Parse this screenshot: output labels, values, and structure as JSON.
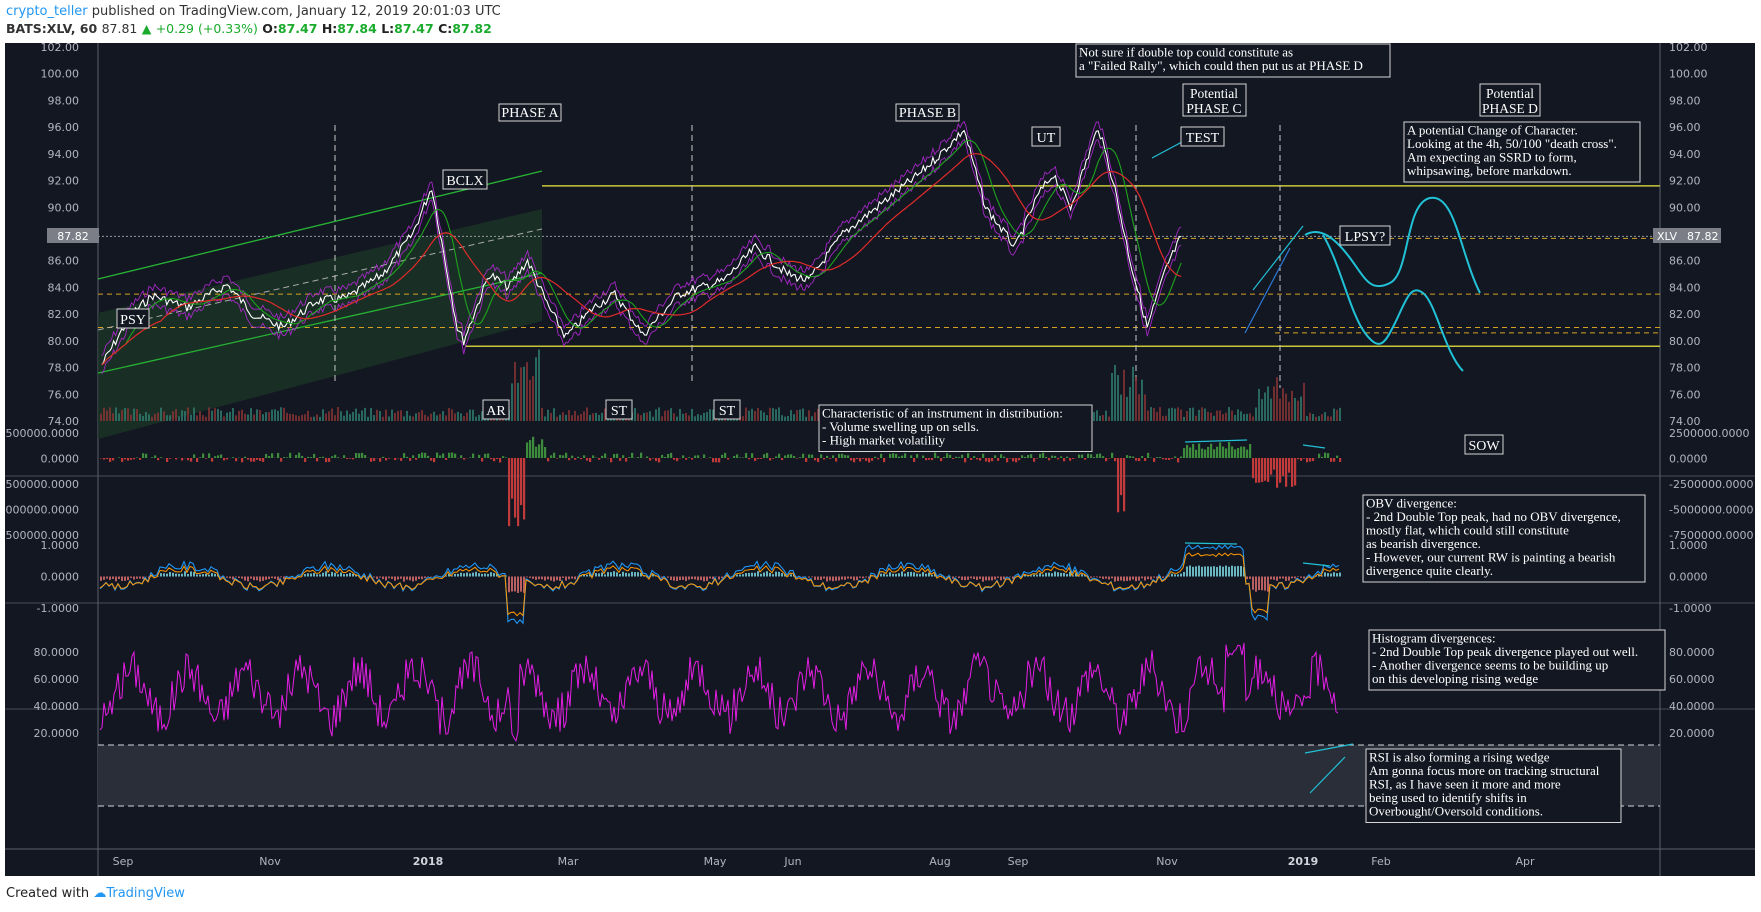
{
  "header": {
    "author": "crypto_teller",
    "published": "published on TradingView.com, January 12, 2019 20:01:03 UTC",
    "symbol": "BATS:XLV, 60",
    "last": "87.81",
    "change": "+0.29 (+0.33%)",
    "open_label": "O:",
    "open": "87.47",
    "high_label": "H:",
    "high": "87.84",
    "low_label": "L:",
    "low": "87.47",
    "close_label": "C:",
    "close": "87.82"
  },
  "footer": {
    "prefix": "Created with",
    "brand": "TradingView"
  },
  "colors": {
    "background": "#131722",
    "price_bar": "#ffffff",
    "ma_fast": "#1fa31f",
    "ma_slow": "#e02b2b",
    "envelope": "#b329d6",
    "yellow_level": "#c9c63a",
    "support_dash": "#d5a123",
    "projection": "#21c1d6",
    "rsi": "#e51ee5",
    "obv_up": "#3c8c3c",
    "obv_down": "#c33a3a"
  },
  "price_scale": {
    "ticks": [
      "102.00",
      "100.00",
      "98.00",
      "96.00",
      "94.00",
      "92.00",
      "90.00",
      "88.00",
      "86.00",
      "84.00",
      "82.00",
      "80.00",
      "78.00",
      "76.00",
      "74.00"
    ],
    "last_tag": "87.82",
    "symbol_tag": "XLV"
  },
  "obv_scale": {
    "ticks": [
      "2500000.0000",
      "0.0000",
      "-2500000.0000",
      "-5000000.0000",
      "-7500000.0000"
    ]
  },
  "hist_scale": {
    "ticks": [
      "1.0000",
      "0.0000",
      "-1.0000"
    ]
  },
  "rsi_scale": {
    "ticks": [
      "80.0000",
      "60.0000",
      "40.0000",
      "20.0000"
    ]
  },
  "time_axis": [
    "Sep",
    "Nov",
    "2018",
    "Mar",
    "May",
    "Jun",
    "Aug",
    "Sep",
    "Nov",
    "2019",
    "Feb",
    "Apr"
  ],
  "labels": {
    "psy": "PSY",
    "bclx": "BCLX",
    "ar": "AR",
    "st1": "ST",
    "st2": "ST",
    "phase_a": "PHASE A",
    "phase_b": "PHASE B",
    "ut": "UT",
    "potential_c_1": "Potential",
    "potential_c_2": "PHASE C",
    "test": "TEST",
    "lpsy": "LPSY?",
    "potential_d_1": "Potential",
    "potential_d_2": "PHASE D",
    "sow": "SOW"
  },
  "notes": {
    "double_top": [
      "Not sure if double top could constitute as",
      "a \"Failed Rally\", which could then put us at PHASE D"
    ],
    "choch": [
      "A potential Change of Character.",
      "Looking at the 4h, 50/100 \"death cross\".",
      "Am expecting an SSRD to form,",
      "whipsawing, before markdown."
    ],
    "distribution": [
      "Characteristic of an instrument in  distribution:",
      "- Volume swelling up on sells.",
      "- High market volatility"
    ],
    "obv": [
      "OBV divergence:",
      "- 2nd Double Top peak, had no OBV divergence,",
      "mostly flat, which could still constitute",
      "as bearish divergence.",
      "- However, our current RW is painting a bearish",
      "divergence quite clearly."
    ],
    "histogram": [
      "Histogram divergences:",
      "- 2nd Double Top peak divergence played out well.",
      "- Another divergence seems to be building up",
      "on this developing rising wedge"
    ],
    "rsi": [
      "RSI is also forming a rising wedge",
      "Am gonna focus more on tracking structural",
      "RSI, as I have seen it more and more",
      "being used to identify shifts in",
      "Overbought/Oversold conditions."
    ]
  },
  "chart_data": [
    {
      "type": "line",
      "title": "BATS:XLV, 60",
      "x_range": [
        "Aug 2017",
        "May 2019"
      ],
      "ylim": [
        74,
        102
      ],
      "series": [
        {
          "name": "XLV",
          "points": [
            [
              "2017-08-22",
              78.2
            ],
            [
              "2017-09-05",
              82.0
            ],
            [
              "2017-09-15",
              83.4
            ],
            [
              "2017-10-01",
              82.5
            ],
            [
              "2017-10-20",
              84.2
            ],
            [
              "2017-11-01",
              82.0
            ],
            [
              "2017-11-15",
              81.0
            ],
            [
              "2017-12-01",
              83.0
            ],
            [
              "2017-12-15",
              83.2
            ],
            [
              "2018-01-01",
              85.0
            ],
            [
              "2018-01-15",
              88.0
            ],
            [
              "2018-01-24",
              91.5
            ],
            [
              "2018-02-05",
              81.0
            ],
            [
              "2018-02-08",
              80.0
            ],
            [
              "2018-02-20",
              85.0
            ],
            [
              "2018-03-01",
              84.0
            ],
            [
              "2018-03-10",
              86.0
            ],
            [
              "2018-03-20",
              82.5
            ],
            [
              "2018-03-28",
              80.3
            ],
            [
              "2018-04-10",
              82.5
            ],
            [
              "2018-04-20",
              83.5
            ],
            [
              "2018-05-01",
              81.0
            ],
            [
              "2018-05-03",
              80.4
            ],
            [
              "2018-05-20",
              83.5
            ],
            [
              "2018-06-10",
              84.5
            ],
            [
              "2018-06-25",
              87.0
            ],
            [
              "2018-07-10",
              85.0
            ],
            [
              "2018-07-20",
              84.5
            ],
            [
              "2018-08-05",
              88.0
            ],
            [
              "2018-08-25",
              90.5
            ],
            [
              "2018-09-10",
              92.5
            ],
            [
              "2018-09-20",
              94.0
            ],
            [
              "2018-10-01",
              95.8
            ],
            [
              "2018-10-11",
              90.0
            ],
            [
              "2018-10-25",
              87.0
            ],
            [
              "2018-11-05",
              91.0
            ],
            [
              "2018-11-12",
              92.5
            ],
            [
              "2018-11-20",
              90.0
            ],
            [
              "2018-12-03",
              96.0
            ],
            [
              "2018-12-10",
              92.0
            ],
            [
              "2018-12-18",
              86.0
            ],
            [
              "2018-12-26",
              81.0
            ],
            [
              "2019-01-04",
              85.5
            ],
            [
              "2019-01-11",
              87.82
            ]
          ]
        }
      ],
      "horizontal_levels": [
        91.6,
        87.82,
        83.5,
        81.0,
        80.6,
        79.6
      ],
      "projection": [
        [
          "2019-01-14",
          88.6
        ],
        [
          "2019-01-25",
          85.0
        ],
        [
          "2019-02-05",
          81.0
        ],
        [
          "2019-02-12",
          81.5
        ],
        [
          "2019-02-22",
          90.5
        ],
        [
          "2019-03-10",
          83.6
        ]
      ]
    },
    {
      "type": "area",
      "title": "OBV",
      "ylim": [
        -7500000,
        2500000
      ],
      "series": [
        {
          "name": "OBV",
          "points": [
            [
              "2017-09",
              0
            ],
            [
              "2018-02-05",
              -7200000
            ],
            [
              "2018-02-10",
              1800000
            ],
            [
              "2018-10-15",
              -5000000
            ],
            [
              "2018-11-25",
              1200000
            ],
            [
              "2018-12-26",
              -3000000
            ],
            [
              "2019-01-11",
              800000
            ]
          ]
        }
      ]
    },
    {
      "type": "line",
      "title": "Histogram",
      "ylim": [
        -1.5,
        1.0
      ],
      "series": [
        {
          "name": "MACD",
          "points": [
            [
              "2017-09",
              0
            ],
            [
              "2018-02-06",
              -1.5
            ],
            [
              "2018-11-12",
              1.0
            ],
            [
              "2018-12-04",
              1.0
            ],
            [
              "2018-12-24",
              -1.4
            ],
            [
              "2019-01-05",
              0.7
            ],
            [
              "2019-01-11",
              0.3
            ]
          ]
        }
      ]
    },
    {
      "type": "line",
      "title": "RSI",
      "ylim": [
        0,
        100
      ],
      "levels": [
        70,
        30
      ],
      "series": [
        {
          "name": "RSI",
          "points": [
            [
              "2017-09",
              60
            ],
            [
              "2018-01-25",
              88
            ],
            [
              "2018-02-06",
              12
            ],
            [
              "2018-11-20",
              85
            ],
            [
              "2018-12-24",
              22
            ],
            [
              "2019-01-11",
              65
            ]
          ]
        }
      ]
    }
  ]
}
